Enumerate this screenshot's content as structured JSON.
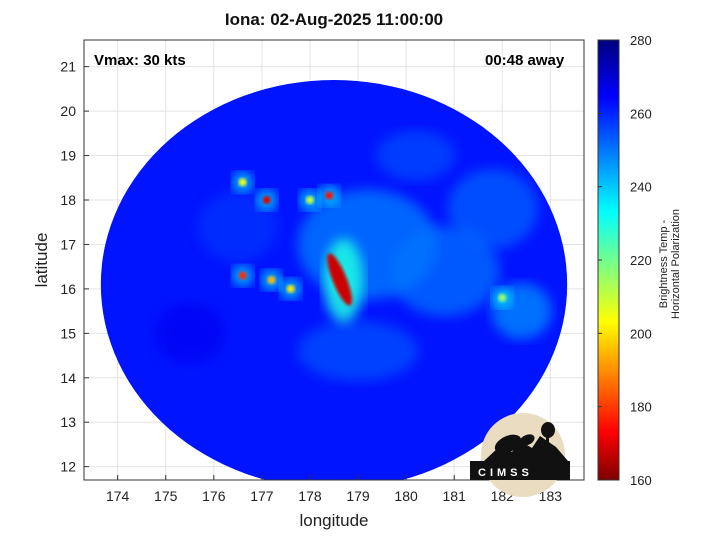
{
  "title": "Iona: 02-Aug-2025 11:00:00",
  "vmax_label": "Vmax: 30 kts",
  "time_away": "00:48 away",
  "x_axis": {
    "label": "longitude",
    "ticks": [
      174,
      175,
      176,
      177,
      178,
      179,
      180,
      181,
      182,
      183
    ],
    "range": [
      173.3,
      183.7
    ]
  },
  "y_axis": {
    "label": "latitude",
    "ticks": [
      12,
      13,
      14,
      15,
      16,
      17,
      18,
      19,
      20,
      21
    ],
    "range": [
      11.7,
      21.6
    ]
  },
  "colorbar": {
    "label": "Brightness Temp - Horizontal Polarization",
    "ticks": [
      160,
      180,
      200,
      220,
      240,
      260,
      280
    ],
    "range": [
      160,
      280
    ],
    "colormap": "jet",
    "colors": [
      "#7f0000",
      "#ff0000",
      "#ffff00",
      "#00ffff",
      "#0080ff",
      "#0000ff",
      "#00007f"
    ]
  },
  "logo": {
    "text": "CIMSS"
  },
  "grid": true,
  "swath": {
    "center_lon": 178.5,
    "center_lat": 16.1,
    "radius_deg_lon": 4.85,
    "radius_deg_lat": 4.6,
    "background_temp": 262
  },
  "features": [
    {
      "name": "eyewall-band",
      "lon": 178.7,
      "lat": 16.3,
      "temp": 168
    },
    {
      "name": "cell",
      "lon": 177.1,
      "lat": 18.0,
      "temp": 170
    },
    {
      "name": "cell",
      "lon": 178.4,
      "lat": 18.1,
      "temp": 175
    },
    {
      "name": "cell",
      "lon": 176.6,
      "lat": 16.3,
      "temp": 178
    },
    {
      "name": "cell",
      "lon": 177.2,
      "lat": 16.2,
      "temp": 195
    },
    {
      "name": "cell",
      "lon": 177.6,
      "lat": 16.0,
      "temp": 200
    },
    {
      "name": "cell",
      "lon": 182.0,
      "lat": 15.8,
      "temp": 215
    },
    {
      "name": "cell",
      "lon": 176.6,
      "lat": 18.4,
      "temp": 205
    },
    {
      "name": "cell",
      "lon": 178.0,
      "lat": 18.0,
      "temp": 210
    }
  ]
}
